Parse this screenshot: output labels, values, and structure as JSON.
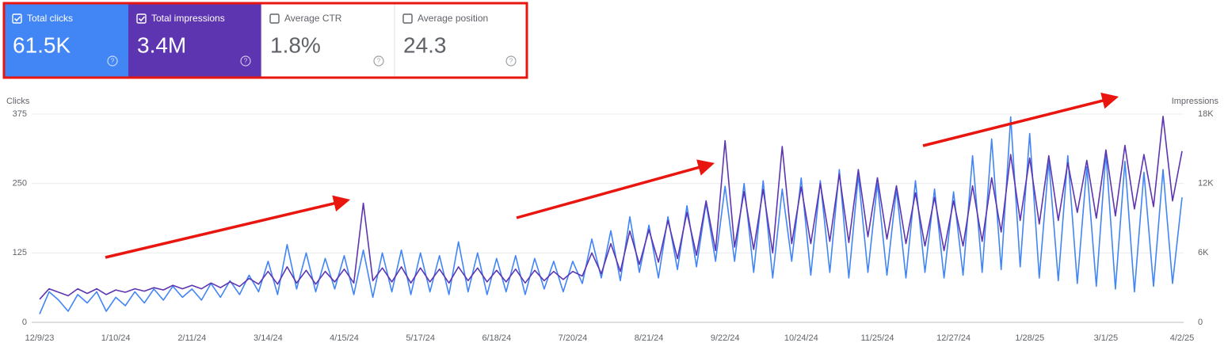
{
  "metrics": [
    {
      "label": "Total clicks",
      "value": "61.5K",
      "checked": true,
      "color": "#4285f4"
    },
    {
      "label": "Total impressions",
      "value": "3.4M",
      "checked": true,
      "color": "#5e35b1"
    },
    {
      "label": "Average CTR",
      "value": "1.8%",
      "checked": false,
      "color": "#ffffff"
    },
    {
      "label": "Average position",
      "value": "24.3",
      "checked": false,
      "color": "#ffffff"
    }
  ],
  "chart_data": {
    "type": "line",
    "ylabel": "Clicks",
    "y2label": "Impressions",
    "categories": [
      "12/9/23",
      null,
      null,
      null,
      null,
      null,
      null,
      null,
      "1/10/24",
      null,
      null,
      null,
      null,
      null,
      null,
      null,
      "2/11/24",
      null,
      null,
      null,
      null,
      null,
      null,
      null,
      "3/14/24",
      null,
      null,
      null,
      null,
      null,
      null,
      null,
      "4/15/24",
      null,
      null,
      null,
      null,
      null,
      null,
      null,
      "5/17/24",
      null,
      null,
      null,
      null,
      null,
      null,
      null,
      "6/18/24",
      null,
      null,
      null,
      null,
      null,
      null,
      null,
      "7/20/24",
      null,
      null,
      null,
      null,
      null,
      null,
      null,
      "8/21/24",
      null,
      null,
      null,
      null,
      null,
      null,
      null,
      "9/22/24",
      null,
      null,
      null,
      null,
      null,
      null,
      null,
      "10/24/24",
      null,
      null,
      null,
      null,
      null,
      null,
      null,
      "11/25/24",
      null,
      null,
      null,
      null,
      null,
      null,
      null,
      "12/27/24",
      null,
      null,
      null,
      null,
      null,
      null,
      null,
      "1/28/25",
      null,
      null,
      null,
      null,
      null,
      null,
      null,
      "3/1/25",
      null,
      null,
      null,
      null,
      null,
      null,
      null,
      "4/2/25"
    ],
    "series": [
      {
        "color": "#4285f4",
        "axis": "y",
        "values": [
          15,
          55,
          40,
          20,
          50,
          35,
          55,
          20,
          45,
          30,
          55,
          35,
          60,
          40,
          65,
          45,
          60,
          40,
          70,
          45,
          75,
          50,
          85,
          55,
          110,
          50,
          140,
          60,
          125,
          55,
          115,
          60,
          120,
          50,
          130,
          45,
          125,
          55,
          130,
          50,
          125,
          55,
          120,
          50,
          145,
          55,
          125,
          50,
          115,
          55,
          120,
          50,
          115,
          60,
          110,
          55,
          110,
          70,
          150,
          80,
          165,
          75,
          190,
          90,
          175,
          80,
          190,
          95,
          210,
          100,
          215,
          110,
          245,
          110,
          250,
          90,
          255,
          80,
          240,
          110,
          260,
          85,
          255,
          90,
          275,
          80,
          265,
          90,
          250,
          85,
          240,
          80,
          255,
          90,
          240,
          80,
          235,
          85,
          300,
          90,
          330,
          95,
          370,
          100,
          340,
          80,
          290,
          75,
          300,
          70,
          280,
          65,
          305,
          60,
          290,
          55,
          270,
          65,
          275,
          70,
          225
        ]
      },
      {
        "color": "#5e35b1",
        "axis": "y2",
        "values": [
          2000,
          2900,
          2600,
          2300,
          2900,
          2500,
          2900,
          2400,
          2800,
          2600,
          2900,
          2700,
          3000,
          2800,
          3200,
          2900,
          3200,
          2900,
          3400,
          3000,
          3500,
          3100,
          3800,
          3300,
          4400,
          3300,
          4800,
          3400,
          4500,
          3300,
          4400,
          3500,
          4600,
          3400,
          10300,
          3600,
          4700,
          3500,
          4800,
          3400,
          4700,
          3500,
          4600,
          3400,
          4800,
          3600,
          4700,
          3500,
          4500,
          3500,
          4600,
          3400,
          4500,
          3600,
          4400,
          3700,
          4400,
          4000,
          6000,
          4200,
          6800,
          4400,
          7900,
          5000,
          8000,
          5200,
          8800,
          5500,
          9500,
          5800,
          10500,
          6200,
          15700,
          6500,
          11300,
          6300,
          11500,
          6000,
          15200,
          6800,
          11700,
          6800,
          12000,
          7000,
          12800,
          6900,
          13200,
          7400,
          12500,
          7200,
          11800,
          6800,
          11200,
          6600,
          10800,
          6200,
          10500,
          6600,
          11800,
          7000,
          12500,
          7800,
          14500,
          8800,
          14200,
          8500,
          14400,
          8800,
          13800,
          9500,
          14000,
          9000,
          14900,
          9200,
          15300,
          9800,
          14500,
          10000,
          17800,
          10500,
          14800
        ]
      }
    ],
    "ylim": [
      0,
      375
    ],
    "yticks": [
      0,
      125,
      250,
      375
    ],
    "y2lim": [
      0,
      18000
    ],
    "y2ticks": [
      {
        "value": 0,
        "label": "0"
      },
      {
        "value": 6000,
        "label": "6K"
      },
      {
        "value": 12000,
        "label": "12K"
      },
      {
        "value": 18000,
        "label": "18K"
      }
    ],
    "grid": true
  }
}
